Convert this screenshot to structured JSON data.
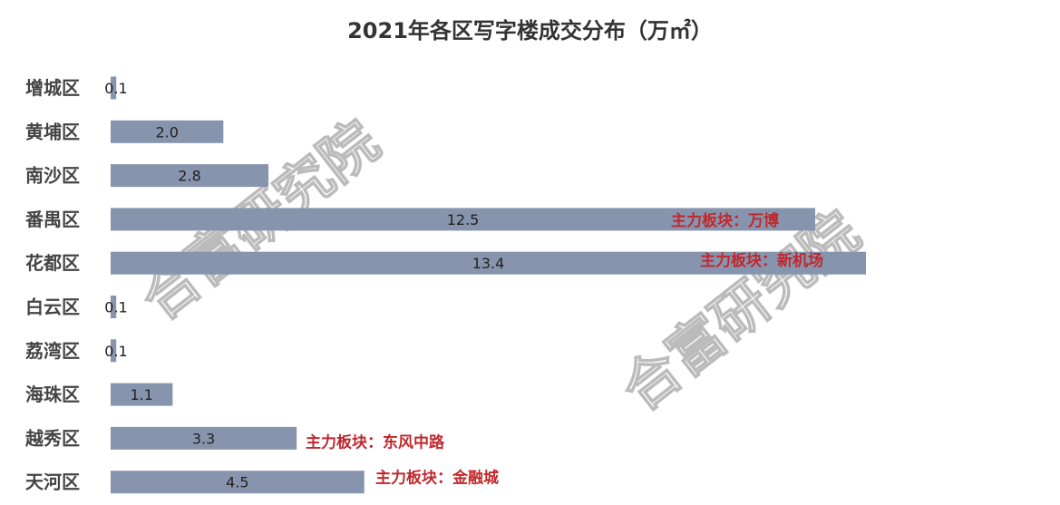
{
  "chart_data": {
    "type": "bar",
    "orientation": "horizontal",
    "title": "2021年各区写字楼成交分布（万㎡）",
    "xlabel": "",
    "ylabel": "",
    "xlim": [
      0,
      13.4
    ],
    "grid": false,
    "legend": "none",
    "categories": [
      "增城区",
      "黄埔区",
      "南沙区",
      "番禺区",
      "花都区",
      "白云区",
      "荔湾区",
      "海珠区",
      "越秀区",
      "天河区"
    ],
    "values": [
      0.1,
      2.0,
      2.8,
      12.5,
      13.4,
      0.1,
      0.1,
      1.1,
      3.3,
      4.5
    ],
    "data_labels": [
      "0.1",
      "2.0",
      "2.8",
      "12.5",
      "13.4",
      "0.1",
      "0.1",
      "1.1",
      "3.3",
      "4.5"
    ],
    "annotations": [
      {
        "category": "番禺区",
        "text": "主力板块：万博"
      },
      {
        "category": "花都区",
        "text": "主力板块：新机场"
      },
      {
        "category": "越秀区",
        "text": "主力板块：东风中路"
      },
      {
        "category": "天河区",
        "text": "主力板块：金融城"
      }
    ],
    "colors": {
      "bar": "#8794ad",
      "annotation": "#c0282d",
      "label": "#222222",
      "title": "#333333"
    }
  },
  "watermark": "合富研究院"
}
